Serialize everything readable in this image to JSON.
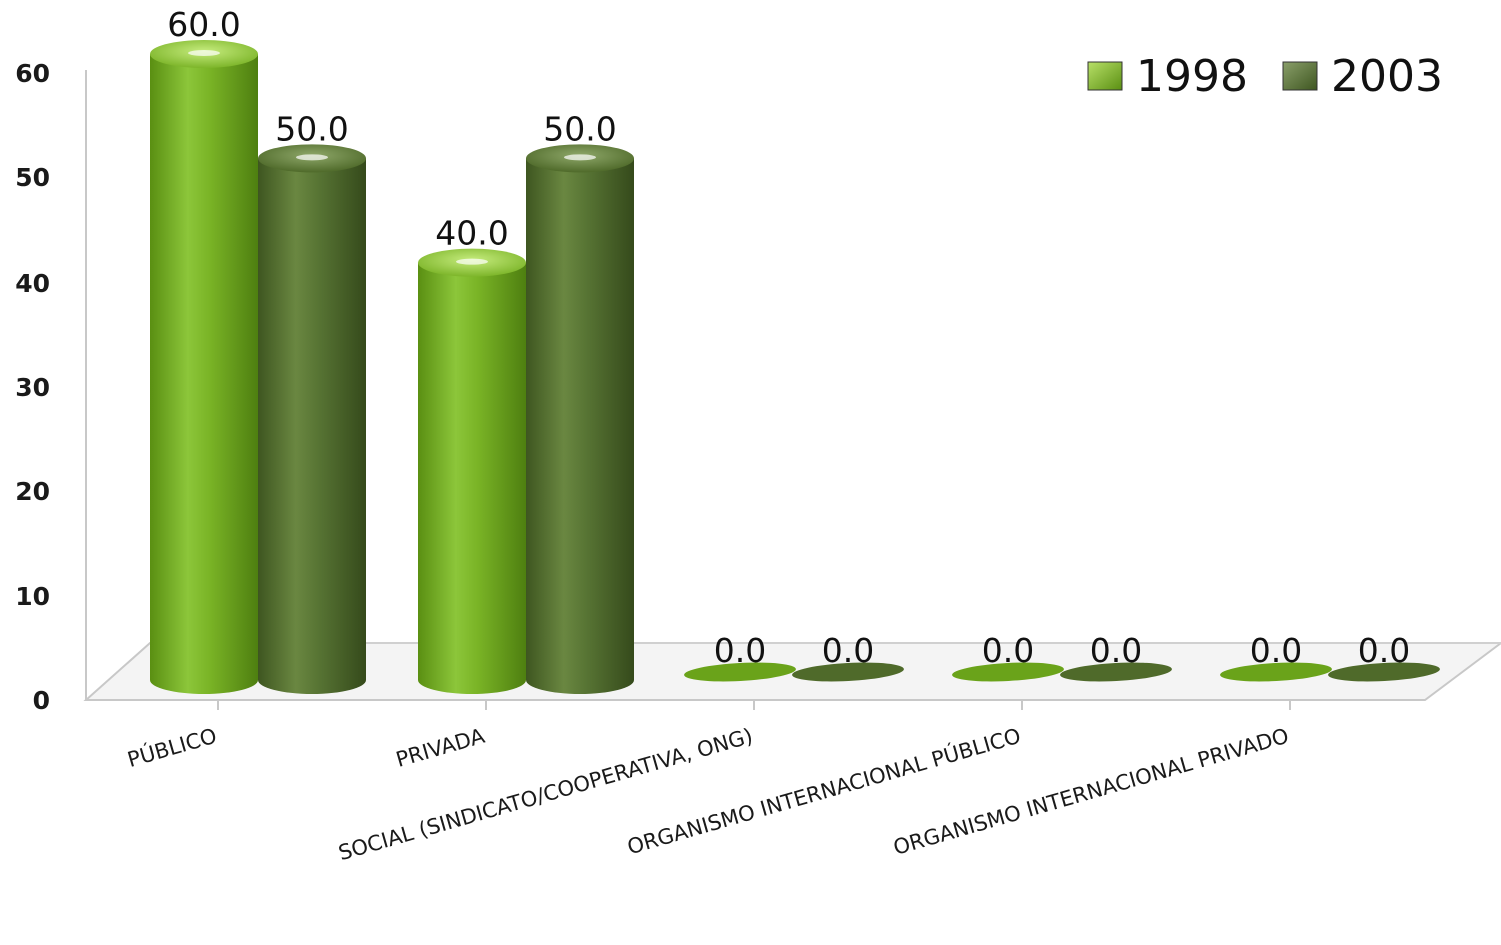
{
  "chart_data": {
    "type": "bar",
    "style": "3d-cylinder",
    "categories": [
      "PÚBLICO",
      "PRIVADA",
      "SOCIAL (SINDICATO/COOPERATIVA, ONG)",
      "ORGANISMO INTERNACIONAL PÚBLICO",
      "ORGANISMO INTERNACIONAL PRIVADO"
    ],
    "series": [
      {
        "name": "1998",
        "values": [
          60.0,
          40.0,
          0.0,
          0.0,
          0.0
        ],
        "labels": [
          "60.0",
          "40.0",
          "0.0",
          "0.0",
          "0.0"
        ],
        "color": "#6aa31a"
      },
      {
        "name": "2003",
        "values": [
          50.0,
          50.0,
          0.0,
          0.0,
          0.0
        ],
        "labels": [
          "50.0",
          "50.0",
          "0.0",
          "0.0",
          "0.0"
        ],
        "color": "#4f6a2a"
      }
    ],
    "yticks": [
      "0",
      "10",
      "20",
      "30",
      "40",
      "50",
      "60"
    ],
    "ylim": [
      0,
      60
    ],
    "title": "",
    "xlabel": "",
    "ylabel": "",
    "legend": "top-right",
    "grid": false
  }
}
